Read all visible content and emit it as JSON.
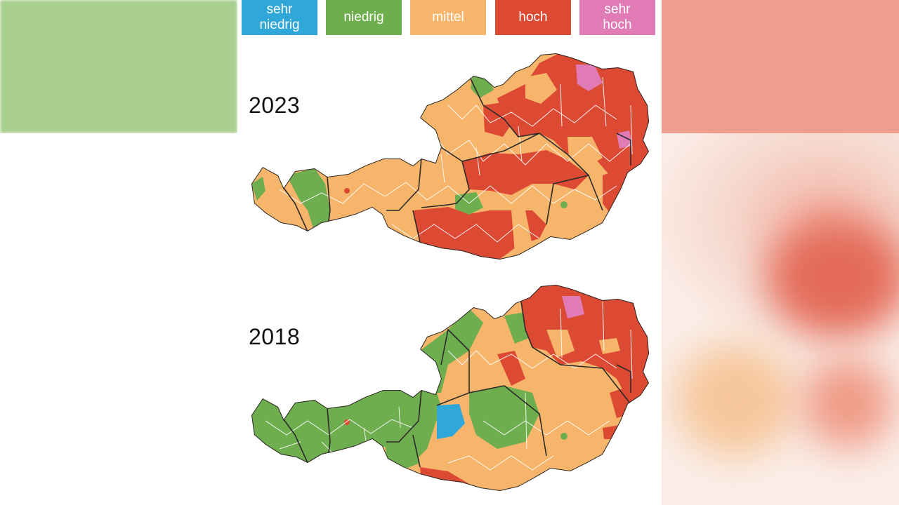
{
  "legend": [
    {
      "label": "sehr\nniedrig",
      "color": "#2fa7d9"
    },
    {
      "label": "niedrig",
      "color": "#6fae4f"
    },
    {
      "label": "mittel",
      "color": "#f7b56b"
    },
    {
      "label": "hoch",
      "color": "#dc4a33"
    },
    {
      "label": "sehr\nhoch",
      "color": "#e07bb5"
    }
  ],
  "maps": [
    {
      "year": "2023"
    },
    {
      "year": "2018"
    }
  ]
}
